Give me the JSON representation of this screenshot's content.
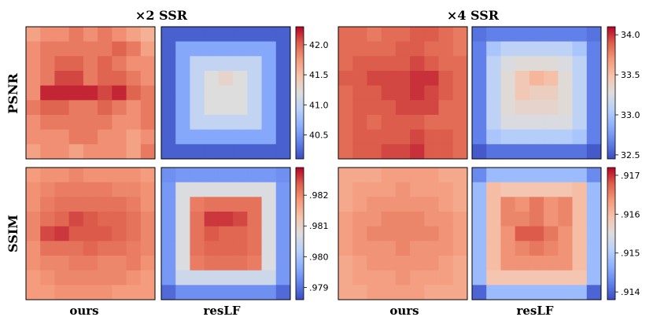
{
  "figure": {
    "col_titles": [
      "×2 SSR",
      "×4 SSR"
    ],
    "row_labels": [
      "PSNR",
      "SSIM"
    ],
    "method_labels": [
      "ours",
      "resLF"
    ]
  },
  "chart_data": [
    {
      "type": "heatmap",
      "name": "x2-psnr",
      "section": "×2 SSR",
      "metric": "PSNR",
      "colormap": "coolwarm",
      "vmin": 40.1,
      "vmax": 42.3,
      "colorbar_ticks": [
        "42.0",
        "41.5",
        "41.0",
        "40.5"
      ],
      "colorbar_tick_values": [
        42.0,
        41.5,
        41.0,
        40.5
      ],
      "methods": [
        "ours",
        "resLF"
      ],
      "grids": [
        [
          [
            41.7,
            41.8,
            41.8,
            41.9,
            41.8,
            41.9,
            41.8,
            41.7,
            41.6
          ],
          [
            41.8,
            41.9,
            41.9,
            41.9,
            41.9,
            41.9,
            42.0,
            41.9,
            41.7
          ],
          [
            41.8,
            41.9,
            42.0,
            42.0,
            41.9,
            42.0,
            41.9,
            41.8,
            41.8
          ],
          [
            41.8,
            41.9,
            42.1,
            42.1,
            41.9,
            42.0,
            42.0,
            41.9,
            41.8
          ],
          [
            41.8,
            42.2,
            42.2,
            42.2,
            42.2,
            42.1,
            42.2,
            42.0,
            41.9
          ],
          [
            41.9,
            42.0,
            42.0,
            41.9,
            41.9,
            42.0,
            41.9,
            41.8,
            41.9
          ],
          [
            41.8,
            41.9,
            41.9,
            41.9,
            41.9,
            41.9,
            41.8,
            41.8,
            41.9
          ],
          [
            41.8,
            41.8,
            41.8,
            41.9,
            41.9,
            41.8,
            41.8,
            41.7,
            41.8
          ],
          [
            41.7,
            41.8,
            41.8,
            41.7,
            41.8,
            41.8,
            41.8,
            41.7,
            41.9
          ]
        ],
        [
          [
            40.2,
            40.2,
            40.2,
            40.2,
            40.2,
            40.2,
            40.2,
            40.2,
            40.2
          ],
          [
            40.2,
            40.6,
            40.6,
            40.6,
            40.6,
            40.6,
            40.6,
            40.6,
            40.2
          ],
          [
            40.2,
            40.6,
            41.0,
            41.0,
            41.0,
            41.0,
            41.0,
            40.6,
            40.2
          ],
          [
            40.2,
            40.6,
            41.0,
            41.2,
            41.3,
            41.2,
            41.0,
            40.6,
            40.2
          ],
          [
            40.2,
            40.6,
            41.0,
            41.2,
            41.2,
            41.2,
            41.0,
            40.6,
            40.2
          ],
          [
            40.2,
            40.6,
            41.0,
            41.2,
            41.2,
            41.2,
            41.0,
            40.6,
            40.2
          ],
          [
            40.2,
            40.6,
            41.0,
            41.0,
            41.0,
            41.0,
            41.0,
            40.6,
            40.2
          ],
          [
            40.2,
            40.6,
            40.6,
            40.6,
            40.6,
            40.6,
            40.6,
            40.6,
            40.2
          ],
          [
            40.2,
            40.2,
            40.2,
            40.2,
            40.2,
            40.2,
            40.2,
            40.2,
            40.2
          ]
        ]
      ]
    },
    {
      "type": "heatmap",
      "name": "x4-psnr",
      "section": "×4 SSR",
      "metric": "PSNR",
      "colormap": "coolwarm",
      "vmin": 32.45,
      "vmax": 34.1,
      "colorbar_ticks": [
        "34.0",
        "33.5",
        "33.0",
        "32.5"
      ],
      "colorbar_tick_values": [
        34.0,
        33.5,
        33.0,
        32.5
      ],
      "methods": [
        "ours",
        "resLF"
      ],
      "grids": [
        [
          [
            33.85,
            33.85,
            33.8,
            33.85,
            33.85,
            33.9,
            33.9,
            33.85,
            33.8
          ],
          [
            33.85,
            33.85,
            33.85,
            33.85,
            33.9,
            33.9,
            33.85,
            33.85,
            33.8
          ],
          [
            33.85,
            33.9,
            33.9,
            33.9,
            33.9,
            33.95,
            33.9,
            33.85,
            33.85
          ],
          [
            33.9,
            33.9,
            33.95,
            33.95,
            33.95,
            34.0,
            34.0,
            33.9,
            33.85
          ],
          [
            33.85,
            33.9,
            33.9,
            33.95,
            33.95,
            34.0,
            33.95,
            33.9,
            33.85
          ],
          [
            33.85,
            33.9,
            33.9,
            33.9,
            33.95,
            33.95,
            33.95,
            33.85,
            33.85
          ],
          [
            33.85,
            33.9,
            33.85,
            33.9,
            33.9,
            33.9,
            33.85,
            33.85,
            33.85
          ],
          [
            33.85,
            33.9,
            33.9,
            33.9,
            33.9,
            33.95,
            33.9,
            33.9,
            33.85
          ],
          [
            33.85,
            33.9,
            33.9,
            33.95,
            33.95,
            34.0,
            33.9,
            33.9,
            33.85
          ]
        ],
        [
          [
            32.6,
            32.65,
            32.65,
            32.65,
            32.65,
            32.65,
            32.65,
            32.65,
            32.6
          ],
          [
            32.65,
            33.0,
            33.1,
            33.1,
            33.1,
            33.1,
            33.1,
            33.0,
            32.65
          ],
          [
            32.65,
            33.1,
            33.25,
            33.3,
            33.3,
            33.3,
            33.25,
            33.1,
            32.65
          ],
          [
            32.65,
            33.1,
            33.3,
            33.45,
            33.55,
            33.5,
            33.3,
            33.1,
            32.65
          ],
          [
            32.65,
            33.1,
            33.3,
            33.45,
            33.4,
            33.4,
            33.3,
            33.1,
            32.65
          ],
          [
            32.65,
            33.1,
            33.3,
            33.35,
            33.35,
            33.35,
            33.3,
            33.1,
            32.65
          ],
          [
            32.65,
            33.1,
            33.25,
            33.25,
            33.25,
            33.25,
            33.25,
            33.1,
            32.65
          ],
          [
            32.65,
            33.0,
            33.05,
            33.05,
            33.05,
            33.05,
            33.05,
            33.0,
            32.65
          ],
          [
            32.5,
            32.6,
            32.6,
            32.6,
            32.6,
            32.6,
            32.6,
            32.6,
            32.5
          ]
        ]
      ]
    },
    {
      "type": "heatmap",
      "name": "x2-ssim",
      "section": "×2 SSR",
      "metric": "SSIM",
      "colormap": "coolwarm",
      "vmin": 0.9786,
      "vmax": 0.9829,
      "colorbar_ticks": [
        ".982",
        ".981",
        ".980",
        ".979"
      ],
      "colorbar_tick_values": [
        0.982,
        0.981,
        0.98,
        0.979
      ],
      "methods": [
        "ours",
        "resLF"
      ],
      "grids": [
        [
          [
            0.9818,
            0.9819,
            0.9819,
            0.982,
            0.9819,
            0.9819,
            0.9819,
            0.9819,
            0.9818
          ],
          [
            0.9819,
            0.982,
            0.9821,
            0.9821,
            0.9821,
            0.9821,
            0.982,
            0.982,
            0.9819
          ],
          [
            0.9819,
            0.9821,
            0.9822,
            0.9822,
            0.9822,
            0.9822,
            0.9822,
            0.9821,
            0.9819
          ],
          [
            0.982,
            0.9822,
            0.9823,
            0.9825,
            0.9824,
            0.9823,
            0.9823,
            0.9822,
            0.982
          ],
          [
            0.982,
            0.9825,
            0.9826,
            0.9824,
            0.9824,
            0.9824,
            0.9823,
            0.9822,
            0.982
          ],
          [
            0.9819,
            0.9822,
            0.9822,
            0.9822,
            0.9823,
            0.9822,
            0.9822,
            0.9821,
            0.982
          ],
          [
            0.9819,
            0.982,
            0.982,
            0.9821,
            0.9821,
            0.982,
            0.982,
            0.9821,
            0.9819
          ],
          [
            0.9818,
            0.9819,
            0.982,
            0.982,
            0.982,
            0.982,
            0.982,
            0.9819,
            0.9818
          ],
          [
            0.9818,
            0.9818,
            0.9819,
            0.9819,
            0.9819,
            0.9819,
            0.9818,
            0.9818,
            0.9818
          ]
        ],
        [
          [
            0.9793,
            0.9794,
            0.9794,
            0.9794,
            0.9794,
            0.9794,
            0.9794,
            0.9794,
            0.9793
          ],
          [
            0.9794,
            0.9807,
            0.9807,
            0.9807,
            0.9807,
            0.9807,
            0.9807,
            0.9807,
            0.9794
          ],
          [
            0.9794,
            0.9807,
            0.9821,
            0.9822,
            0.9822,
            0.9822,
            0.9822,
            0.9807,
            0.9794
          ],
          [
            0.9794,
            0.9807,
            0.9822,
            0.9826,
            0.9826,
            0.9825,
            0.9822,
            0.9807,
            0.9794
          ],
          [
            0.9794,
            0.9807,
            0.9822,
            0.9824,
            0.9823,
            0.9823,
            0.9822,
            0.9807,
            0.9794
          ],
          [
            0.9794,
            0.9807,
            0.9822,
            0.9823,
            0.9823,
            0.9823,
            0.9822,
            0.9807,
            0.9794
          ],
          [
            0.9794,
            0.9807,
            0.9821,
            0.9822,
            0.9822,
            0.9822,
            0.9821,
            0.9807,
            0.9794
          ],
          [
            0.9794,
            0.9805,
            0.9805,
            0.9805,
            0.9805,
            0.9805,
            0.9805,
            0.9805,
            0.9794
          ],
          [
            0.9789,
            0.9793,
            0.9793,
            0.9793,
            0.9793,
            0.9793,
            0.9793,
            0.9793,
            0.9789
          ]
        ]
      ]
    },
    {
      "type": "heatmap",
      "name": "x4-ssim",
      "section": "×4 SSR",
      "metric": "SSIM",
      "colormap": "coolwarm",
      "vmin": 0.9138,
      "vmax": 0.9172,
      "colorbar_ticks": [
        ".917",
        ".916",
        ".915",
        ".914"
      ],
      "colorbar_tick_values": [
        0.917,
        0.916,
        0.915,
        0.914
      ],
      "methods": [
        "ours",
        "resLF"
      ],
      "grids": [
        [
          [
            0.9162,
            0.9162,
            0.9162,
            0.9163,
            0.9163,
            0.9163,
            0.9163,
            0.9162,
            0.9162
          ],
          [
            0.9162,
            0.9163,
            0.9163,
            0.9163,
            0.9164,
            0.9163,
            0.9163,
            0.9163,
            0.9162
          ],
          [
            0.9162,
            0.9163,
            0.9164,
            0.9164,
            0.9164,
            0.9164,
            0.9164,
            0.9163,
            0.9162
          ],
          [
            0.9163,
            0.9164,
            0.9164,
            0.9165,
            0.9165,
            0.9165,
            0.9164,
            0.9164,
            0.9163
          ],
          [
            0.9163,
            0.9164,
            0.9165,
            0.9165,
            0.9165,
            0.9165,
            0.9165,
            0.9164,
            0.9163
          ],
          [
            0.9163,
            0.9164,
            0.9164,
            0.9164,
            0.9165,
            0.9164,
            0.9164,
            0.9164,
            0.9163
          ],
          [
            0.9162,
            0.9163,
            0.9164,
            0.9164,
            0.9164,
            0.9164,
            0.9164,
            0.9163,
            0.9162
          ],
          [
            0.9162,
            0.9163,
            0.9163,
            0.9163,
            0.9164,
            0.9163,
            0.9163,
            0.9163,
            0.9162
          ],
          [
            0.9162,
            0.9162,
            0.9163,
            0.9163,
            0.9163,
            0.9163,
            0.9162,
            0.9162,
            0.9162
          ]
        ],
        [
          [
            0.9143,
            0.9148,
            0.9148,
            0.9148,
            0.9148,
            0.9148,
            0.9148,
            0.9148,
            0.9143
          ],
          [
            0.9148,
            0.916,
            0.9159,
            0.9159,
            0.9159,
            0.9159,
            0.9159,
            0.916,
            0.9148
          ],
          [
            0.9148,
            0.916,
            0.9165,
            0.9164,
            0.9166,
            0.9164,
            0.9165,
            0.916,
            0.9148
          ],
          [
            0.9148,
            0.916,
            0.9165,
            0.9165,
            0.9166,
            0.9164,
            0.9165,
            0.916,
            0.9148
          ],
          [
            0.9148,
            0.916,
            0.9164,
            0.9168,
            0.9168,
            0.9166,
            0.9164,
            0.916,
            0.9148
          ],
          [
            0.9148,
            0.916,
            0.9164,
            0.9165,
            0.9166,
            0.9165,
            0.9164,
            0.916,
            0.9148
          ],
          [
            0.9148,
            0.916,
            0.9164,
            0.9164,
            0.9164,
            0.9164,
            0.9164,
            0.916,
            0.9148
          ],
          [
            0.9148,
            0.9159,
            0.9159,
            0.9159,
            0.9159,
            0.9159,
            0.9159,
            0.9159,
            0.9148
          ],
          [
            0.914,
            0.9148,
            0.9148,
            0.9148,
            0.9148,
            0.9148,
            0.9148,
            0.9148,
            0.914
          ]
        ]
      ]
    }
  ]
}
